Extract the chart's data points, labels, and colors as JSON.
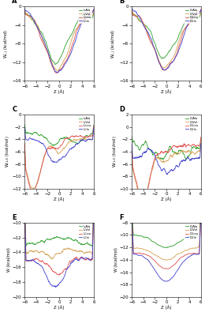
{
  "panels": [
    {
      "label": "A",
      "ylabel": "W$_{L,J}$ (kcal/mol)",
      "ylim": [
        -16,
        0
      ],
      "yticks": [
        0,
        -4,
        -8,
        -12,
        -16
      ],
      "enantiomer": "L"
    },
    {
      "label": "B",
      "ylabel": "W$_{L,J}$ (kcal/mol)",
      "ylim": [
        -16,
        0
      ],
      "yticks": [
        0,
        -4,
        -8,
        -12,
        -16
      ],
      "enantiomer": "D"
    },
    {
      "label": "C",
      "ylabel": "W$_{EL,E}$ (kcal/mol)",
      "ylim": [
        -12,
        0
      ],
      "yticks": [
        0,
        -2,
        -4,
        -6,
        -8,
        -10,
        -12
      ],
      "enantiomer": "L"
    },
    {
      "label": "D",
      "ylabel": "W$_{EL,E}$ (kcal/mol)",
      "ylim": [
        -10,
        2
      ],
      "yticks": [
        2,
        0,
        -2,
        -4,
        -6,
        -8,
        -10
      ],
      "enantiomer": "D"
    },
    {
      "label": "E",
      "ylabel": "W (kcal/mol)",
      "ylim": [
        -20,
        -10
      ],
      "yticks": [
        -10,
        -12,
        -14,
        -16,
        -18,
        -20
      ],
      "enantiomer": "L"
    },
    {
      "label": "F",
      "ylabel": "W (kcal/mol)",
      "ylim": [
        -20,
        -8
      ],
      "yticks": [
        -8,
        -10,
        -12,
        -14,
        -16,
        -18,
        -20
      ],
      "enantiomer": "D"
    }
  ],
  "xlim": [
    -6,
    6
  ],
  "xticks": [
    -6,
    -4,
    -2,
    0,
    2,
    4,
    6
  ],
  "xlabel": "Z (Å)",
  "colors": {
    "Ala": "#2ca02c",
    "Val": "#d4a050",
    "Leu": "#e05050",
    "Ile": "#4040cc"
  },
  "amino_acids": [
    "Ala",
    "Val",
    "Leu",
    "Ile"
  ],
  "seed": 42
}
